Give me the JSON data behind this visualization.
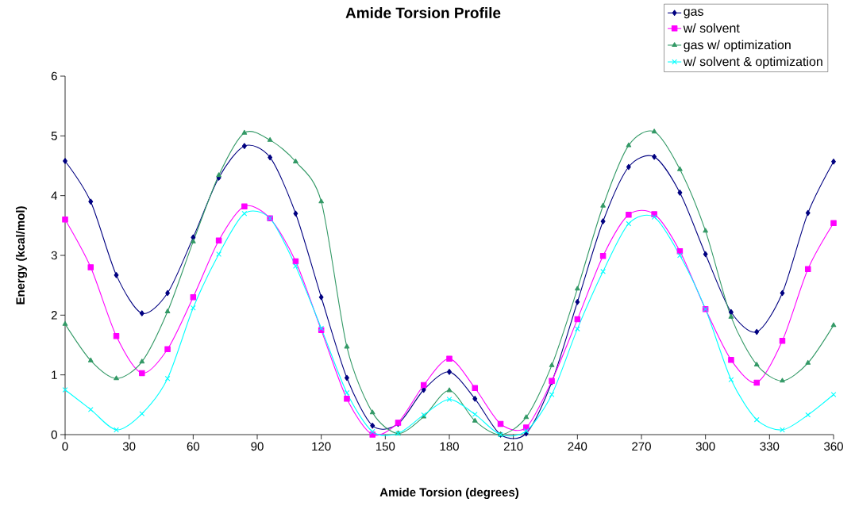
{
  "chart_data": {
    "type": "line",
    "title": "Amide Torsion Profile",
    "xlabel": "Amide Torsion (degrees)",
    "ylabel": "Energy (kcal/mol)",
    "x": [
      0,
      12,
      24,
      36,
      48,
      60,
      72,
      84,
      96,
      108,
      120,
      132,
      144,
      156,
      168,
      180,
      192,
      204,
      216,
      228,
      240,
      252,
      264,
      276,
      288,
      300,
      312,
      324,
      336,
      348,
      360
    ],
    "series": [
      {
        "name": "gas",
        "color": "#000080",
        "marker": "diamond",
        "values": [
          4.58,
          3.9,
          2.67,
          2.03,
          2.37,
          3.3,
          4.3,
          4.83,
          4.64,
          3.7,
          2.3,
          0.95,
          0.15,
          0.18,
          0.75,
          1.05,
          0.6,
          0.0,
          0.02,
          0.88,
          2.22,
          3.57,
          4.48,
          4.65,
          4.05,
          3.02,
          2.05,
          1.72,
          2.37,
          3.71,
          4.57
        ]
      },
      {
        "name": "w/ solvent",
        "color": "#ff00ff",
        "marker": "square",
        "values": [
          3.6,
          2.8,
          1.65,
          1.03,
          1.43,
          2.3,
          3.25,
          3.82,
          3.62,
          2.9,
          1.75,
          0.6,
          0.0,
          0.2,
          0.83,
          1.27,
          0.78,
          0.18,
          0.12,
          0.9,
          1.93,
          2.99,
          3.68,
          3.69,
          3.07,
          2.1,
          1.25,
          0.87,
          1.57,
          2.77,
          3.54
        ]
      },
      {
        "name": "gas w/ optimization",
        "color": "#339966",
        "marker": "triangle",
        "values": [
          1.85,
          1.24,
          0.94,
          1.22,
          2.06,
          3.23,
          4.34,
          5.05,
          4.93,
          4.57,
          3.9,
          1.47,
          0.37,
          0.02,
          0.3,
          0.74,
          0.23,
          0.0,
          0.29,
          1.16,
          2.44,
          3.83,
          4.84,
          5.07,
          4.44,
          3.41,
          1.97,
          1.17,
          0.9,
          1.2,
          1.83
        ]
      },
      {
        "name": "w/ solvent & optimization",
        "color": "#00ffff",
        "marker": "cross",
        "values": [
          0.75,
          0.42,
          0.08,
          0.35,
          0.94,
          2.12,
          3.02,
          3.7,
          3.62,
          2.82,
          1.78,
          0.7,
          0.05,
          0.02,
          0.33,
          0.59,
          0.34,
          0.0,
          0.06,
          0.67,
          1.77,
          2.73,
          3.53,
          3.64,
          3.0,
          2.1,
          0.92,
          0.25,
          0.08,
          0.33,
          0.67
        ]
      }
    ],
    "xlim": [
      0,
      360
    ],
    "xticks": [
      0,
      30,
      60,
      90,
      120,
      150,
      180,
      210,
      240,
      270,
      300,
      330,
      360
    ],
    "ylim": [
      0,
      6
    ],
    "yticks": [
      0,
      1,
      2,
      3,
      4,
      5,
      6
    ],
    "grid": false,
    "legend": "top right",
    "line_style": "solid"
  }
}
